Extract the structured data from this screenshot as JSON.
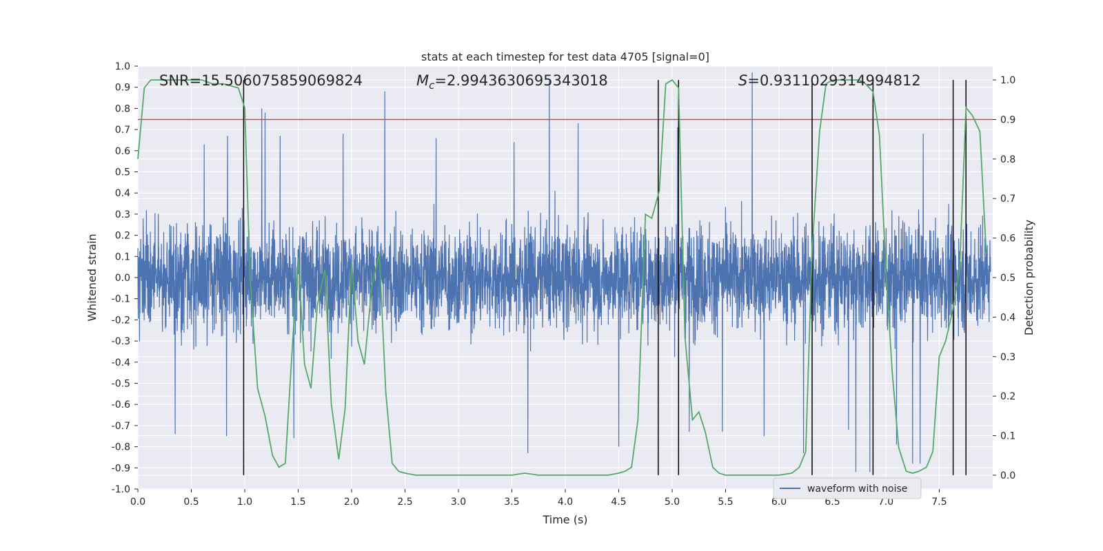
{
  "chart_data": {
    "type": "line",
    "title": "stats at each timestep for test data 4705 [signal=0]",
    "xlabel": "Time (s)",
    "ylabel": "Whitened strain",
    "y2label": "Detection probability",
    "xlim": [
      0,
      8
    ],
    "ylim": [
      -1.0,
      1.0
    ],
    "y2lim": [
      -0.035,
      1.035
    ],
    "x_ticks": [
      "0.0",
      "0.5",
      "1.0",
      "1.5",
      "2.0",
      "2.5",
      "3.0",
      "3.5",
      "4.0",
      "4.5",
      "5.0",
      "5.5",
      "6.0",
      "6.5",
      "7.0",
      "7.5"
    ],
    "y_ticks": [
      "-1.0",
      "-0.9",
      "-0.8",
      "-0.7",
      "-0.6",
      "-0.5",
      "-0.4",
      "-0.3",
      "-0.2",
      "-0.1",
      "0.0",
      "0.1",
      "0.2",
      "0.3",
      "0.4",
      "0.5",
      "0.6",
      "0.7",
      "0.8",
      "0.9",
      "1.0"
    ],
    "y2_ticks": [
      "0.0",
      "0.1",
      "0.2",
      "0.3",
      "0.4",
      "0.5",
      "0.6",
      "0.7",
      "0.8",
      "0.9",
      "1.0"
    ],
    "grid": true,
    "legend": {
      "placement": "lower-right",
      "entries": [
        "waveform with noise"
      ]
    },
    "annotations": {
      "snr": "SNR=15.506075859069824",
      "mc_symbol": "M",
      "mc_sub": "c",
      "mc_value": "=2.9943630695343018",
      "s_symbol": "S",
      "s_value": "=0.9311029314994812"
    },
    "threshold": 0.9,
    "vlines": [
      0.99,
      4.87,
      5.06,
      6.31,
      6.88,
      7.63,
      7.75
    ],
    "waveform": {
      "name": "waveform with noise",
      "t_max": 7.98,
      "samples": 4090,
      "typical_max": 0.48,
      "typical_min": -0.47,
      "peaks": [
        [
          1.16,
          0.8
        ],
        [
          1.19,
          0.78
        ],
        [
          2.31,
          0.88
        ],
        [
          3.85,
          0.93
        ],
        [
          5.75,
          0.97
        ],
        [
          0.84,
          0.67
        ],
        [
          1.33,
          0.67
        ],
        [
          1.92,
          0.68
        ],
        [
          2.79,
          0.66
        ],
        [
          3.52,
          0.64
        ],
        [
          4.12,
          0.73
        ],
        [
          5.05,
          0.71
        ],
        [
          7.35,
          0.68
        ],
        [
          0.62,
          0.63
        ]
      ],
      "troughs": [
        [
          0.35,
          -0.74
        ],
        [
          0.83,
          -0.75
        ],
        [
          1.46,
          -0.76
        ],
        [
          3.65,
          -0.83
        ],
        [
          4.5,
          -0.8
        ],
        [
          6.72,
          -0.92
        ],
        [
          6.85,
          -0.92
        ],
        [
          7.25,
          -0.88
        ],
        [
          7.32,
          -0.88
        ],
        [
          7.1,
          -0.79
        ],
        [
          5.16,
          -0.73
        ],
        [
          5.47,
          -0.73
        ],
        [
          5.86,
          -0.75
        ],
        [
          6.23,
          -0.83
        ],
        [
          6.65,
          -0.72
        ]
      ],
      "color": "#4c72b0"
    },
    "detection_probability": {
      "color": "#55a868",
      "x": [
        0.0,
        0.06,
        0.12,
        0.2,
        0.3,
        0.4,
        0.5,
        0.6,
        0.7,
        0.8,
        0.94,
        1.0,
        1.05,
        1.12,
        1.19,
        1.26,
        1.32,
        1.38,
        1.44,
        1.5,
        1.56,
        1.62,
        1.68,
        1.75,
        1.81,
        1.88,
        1.94,
        2.0,
        2.06,
        2.12,
        2.19,
        2.26,
        2.32,
        2.38,
        2.44,
        2.5,
        2.6,
        2.75,
        3.0,
        3.25,
        3.5,
        3.62,
        3.75,
        4.0,
        4.25,
        4.4,
        4.5,
        4.56,
        4.62,
        4.68,
        4.75,
        4.81,
        4.88,
        4.94,
        5.0,
        5.06,
        5.12,
        5.19,
        5.25,
        5.31,
        5.38,
        5.44,
        5.5,
        5.75,
        6.0,
        6.12,
        6.19,
        6.25,
        6.31,
        6.38,
        6.44,
        6.5,
        6.75,
        6.81,
        6.88,
        6.94,
        7.0,
        7.06,
        7.12,
        7.19,
        7.25,
        7.31,
        7.38,
        7.44,
        7.5,
        7.56,
        7.62,
        7.69,
        7.75,
        7.81,
        7.88,
        7.94
      ],
      "y": [
        0.8,
        0.98,
        1.0,
        1.0,
        1.0,
        1.0,
        1.0,
        1.0,
        0.99,
        0.99,
        0.98,
        0.93,
        0.5,
        0.22,
        0.15,
        0.05,
        0.02,
        0.03,
        0.3,
        0.55,
        0.28,
        0.22,
        0.43,
        0.52,
        0.18,
        0.04,
        0.17,
        0.54,
        0.34,
        0.28,
        0.48,
        0.56,
        0.21,
        0.03,
        0.01,
        0.005,
        0.0,
        0.0,
        0.0,
        0.0,
        0.0,
        0.005,
        0.0,
        0.0,
        0.0,
        0.0,
        0.005,
        0.01,
        0.02,
        0.14,
        0.66,
        0.65,
        0.72,
        0.99,
        1.0,
        0.98,
        0.35,
        0.14,
        0.16,
        0.11,
        0.02,
        0.005,
        0.0,
        0.0,
        0.0,
        0.005,
        0.02,
        0.06,
        0.57,
        0.87,
        0.99,
        1.0,
        1.0,
        0.99,
        0.97,
        0.86,
        0.52,
        0.26,
        0.07,
        0.01,
        0.005,
        0.01,
        0.02,
        0.06,
        0.3,
        0.34,
        0.41,
        0.52,
        0.93,
        0.91,
        0.87,
        0.56
      ]
    }
  }
}
